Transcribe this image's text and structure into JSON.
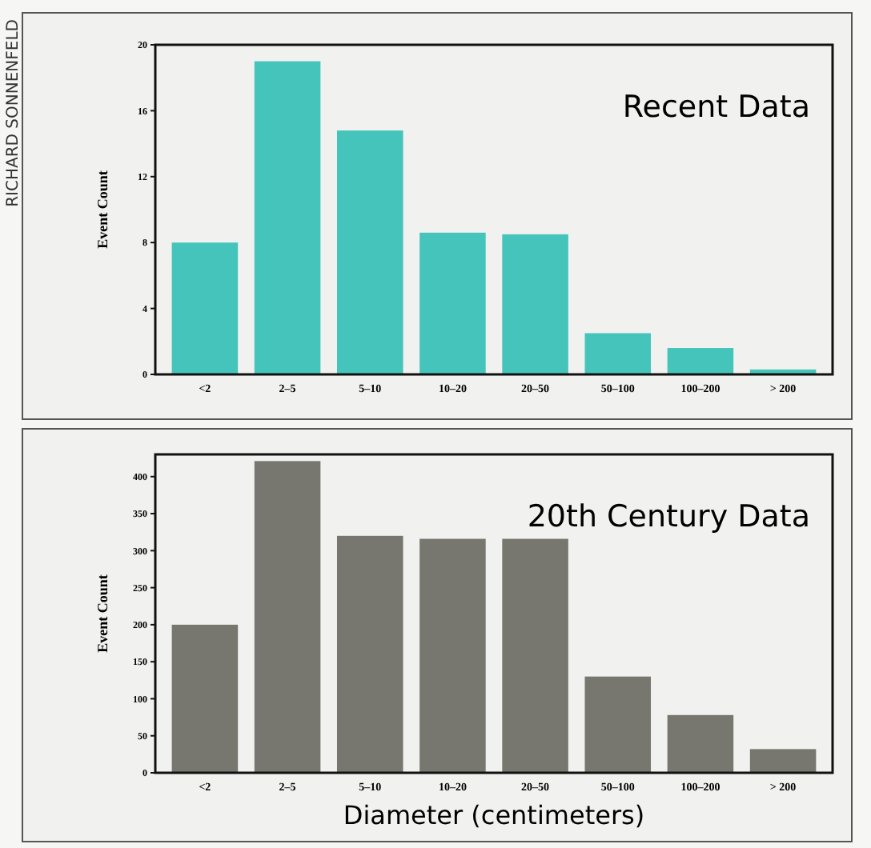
{
  "chart_data": [
    {
      "type": "bar",
      "title": "Recent Data",
      "ylabel": "Event Count",
      "categories": [
        "<2",
        "2–5",
        "5–10",
        "10–20",
        "20–50",
        "50–100",
        "100–200",
        "> 200"
      ],
      "values": [
        8,
        19,
        14.8,
        8.6,
        8.5,
        2.5,
        1.6,
        0.3
      ],
      "color": "#45c4bc",
      "ylim": [
        0,
        20
      ],
      "yticks": [
        0,
        4,
        8,
        12,
        16,
        20
      ],
      "annotations": [
        "RICHARD SONNENFELD"
      ]
    },
    {
      "type": "bar",
      "title": "20th Century Data",
      "ylabel": "Event Count",
      "xlabel": "Diameter (centimeters)",
      "categories": [
        "<2",
        "2–5",
        "5–10",
        "10–20",
        "20–50",
        "50–100",
        "100–200",
        "> 200"
      ],
      "values": [
        200,
        421,
        320,
        316,
        316,
        130,
        78,
        32
      ],
      "color": "#77776f",
      "ylim": [
        0,
        430
      ],
      "yticks": [
        0,
        50,
        100,
        150,
        200,
        250,
        300,
        350,
        400
      ]
    }
  ]
}
